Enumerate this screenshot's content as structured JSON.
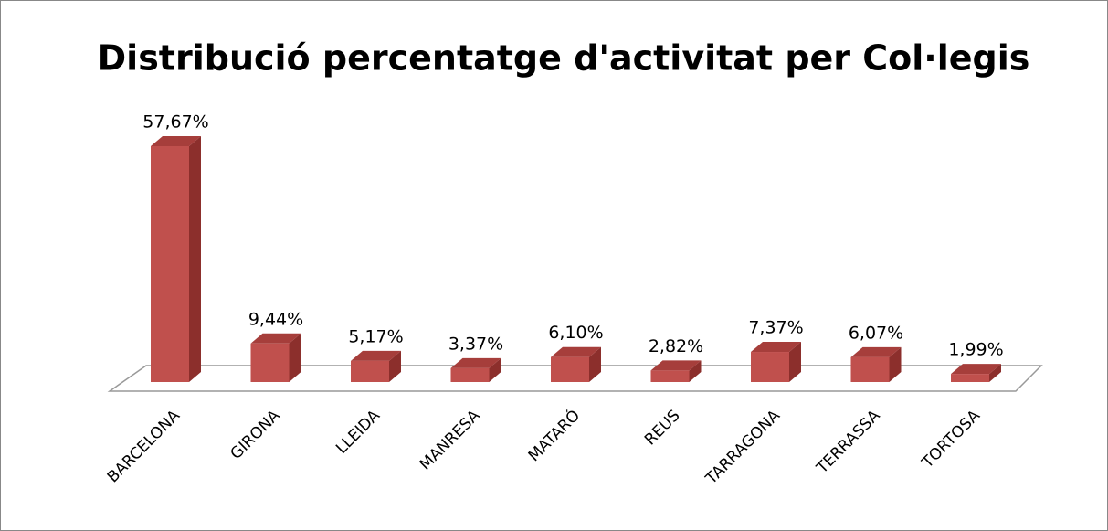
{
  "chart_data": {
    "type": "bar3d",
    "title": "Distribució percentatge d'activitat per Col·legis",
    "categories": [
      "BARCELONA",
      "GIRONA",
      "LLEIDA",
      "MANRESA",
      "MATARÓ",
      "REUS",
      "TARRAGONA",
      "TERRASSA",
      "TORTOSA"
    ],
    "values": [
      57.67,
      9.44,
      5.17,
      3.37,
      6.1,
      2.82,
      7.37,
      6.07,
      1.99
    ],
    "value_labels": [
      "57,67%",
      "9,44%",
      "5,17%",
      "3,37%",
      "6,10%",
      "2,82%",
      "7,37%",
      "6,07%",
      "1,99%"
    ],
    "color": "#c0504d"
  }
}
